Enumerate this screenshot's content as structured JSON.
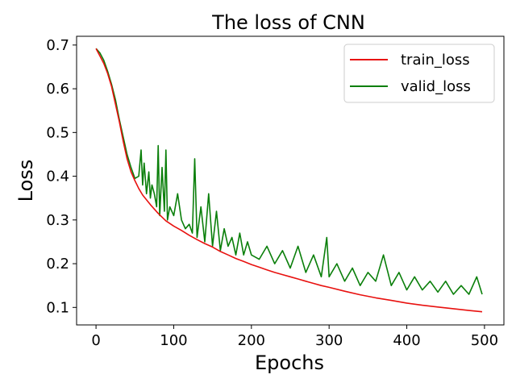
{
  "chart_data": {
    "type": "line",
    "title": "The loss of CNN",
    "xlabel": "Epochs",
    "ylabel": "Loss",
    "xlim": [
      -25,
      525
    ],
    "ylim": [
      0.06,
      0.72
    ],
    "xticks": [
      0,
      100,
      200,
      300,
      400,
      500
    ],
    "yticks": [
      0.1,
      0.2,
      0.3,
      0.4,
      0.5,
      0.6,
      0.7
    ],
    "grid": false,
    "legend": "top-right",
    "series": [
      {
        "name": "train_loss",
        "color": "#e8110f",
        "x": [
          0,
          5,
          10,
          15,
          20,
          25,
          30,
          35,
          40,
          45,
          50,
          55,
          60,
          70,
          80,
          90,
          100,
          110,
          120,
          130,
          140,
          150,
          160,
          170,
          180,
          190,
          200,
          210,
          220,
          230,
          240,
          250,
          260,
          270,
          280,
          290,
          300,
          320,
          340,
          360,
          380,
          400,
          420,
          440,
          460,
          480,
          497
        ],
        "y": [
          0.692,
          0.675,
          0.658,
          0.635,
          0.605,
          0.565,
          0.525,
          0.48,
          0.44,
          0.41,
          0.39,
          0.372,
          0.357,
          0.335,
          0.315,
          0.298,
          0.286,
          0.276,
          0.265,
          0.255,
          0.246,
          0.238,
          0.228,
          0.22,
          0.212,
          0.205,
          0.198,
          0.192,
          0.186,
          0.18,
          0.175,
          0.17,
          0.165,
          0.16,
          0.155,
          0.15,
          0.146,
          0.137,
          0.129,
          0.122,
          0.116,
          0.11,
          0.105,
          0.101,
          0.097,
          0.093,
          0.09
        ]
      },
      {
        "name": "valid_loss",
        "color": "#0a7f0a",
        "x": [
          0,
          5,
          10,
          15,
          20,
          25,
          30,
          35,
          40,
          45,
          50,
          55,
          58,
          60,
          62,
          65,
          68,
          70,
          72,
          75,
          78,
          80,
          82,
          85,
          88,
          90,
          92,
          95,
          100,
          105,
          110,
          115,
          120,
          124,
          127,
          130,
          135,
          140,
          145,
          150,
          155,
          160,
          165,
          170,
          175,
          180,
          185,
          190,
          195,
          200,
          210,
          220,
          230,
          240,
          250,
          260,
          270,
          280,
          290,
          297,
          300,
          310,
          320,
          330,
          340,
          350,
          360,
          370,
          380,
          390,
          400,
          410,
          420,
          430,
          440,
          450,
          460,
          470,
          480,
          490,
          497
        ],
        "y": [
          0.692,
          0.682,
          0.665,
          0.64,
          0.61,
          0.575,
          0.53,
          0.49,
          0.45,
          0.42,
          0.395,
          0.4,
          0.46,
          0.38,
          0.43,
          0.36,
          0.41,
          0.35,
          0.38,
          0.36,
          0.33,
          0.47,
          0.31,
          0.42,
          0.32,
          0.46,
          0.3,
          0.33,
          0.31,
          0.36,
          0.3,
          0.28,
          0.29,
          0.27,
          0.44,
          0.26,
          0.33,
          0.25,
          0.36,
          0.24,
          0.32,
          0.23,
          0.28,
          0.24,
          0.26,
          0.22,
          0.27,
          0.22,
          0.25,
          0.22,
          0.21,
          0.24,
          0.2,
          0.23,
          0.19,
          0.24,
          0.18,
          0.22,
          0.17,
          0.26,
          0.17,
          0.2,
          0.16,
          0.19,
          0.15,
          0.18,
          0.16,
          0.22,
          0.15,
          0.18,
          0.14,
          0.17,
          0.14,
          0.16,
          0.135,
          0.16,
          0.13,
          0.15,
          0.13,
          0.17,
          0.13
        ]
      }
    ]
  }
}
